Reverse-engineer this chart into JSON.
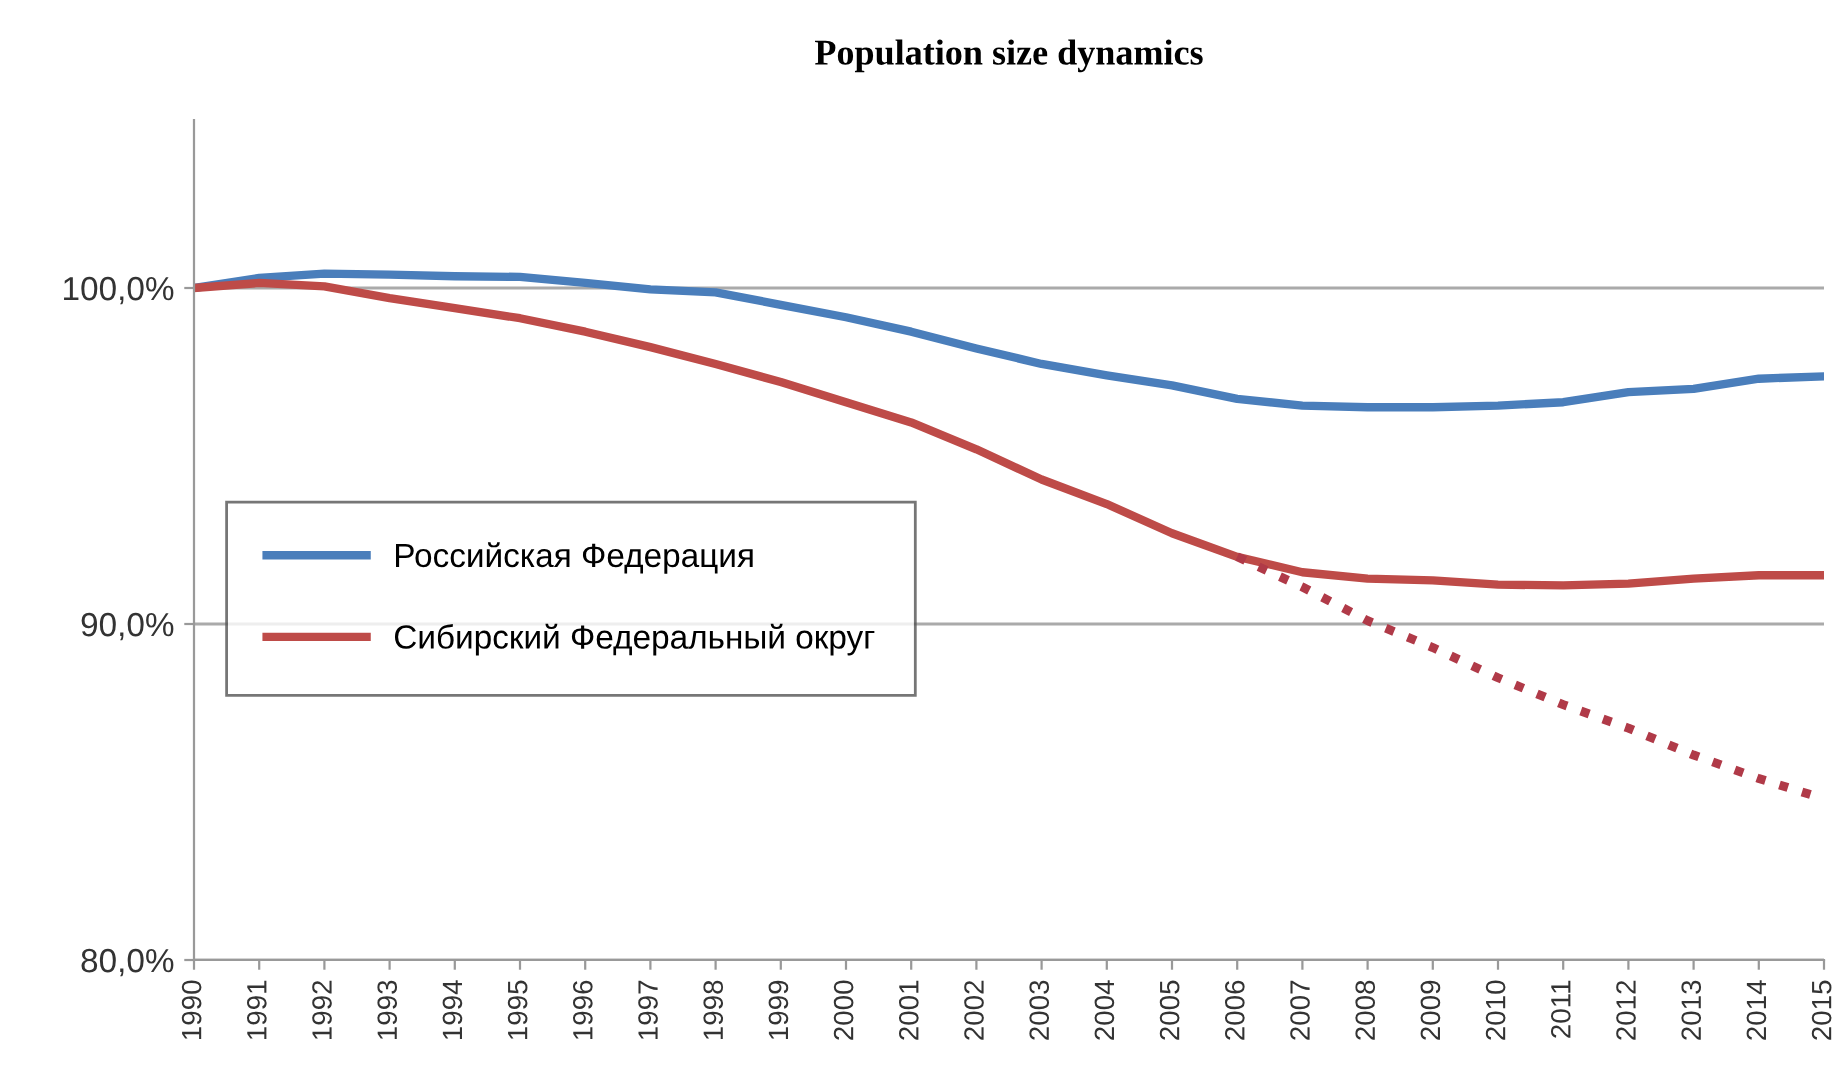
{
  "chart_data": {
    "type": "line",
    "title": "Population size dynamics",
    "categories": [
      "1990",
      "1991",
      "1992",
      "1993",
      "1994",
      "1995",
      "1996",
      "1997",
      "1998",
      "1999",
      "2000",
      "2001",
      "2002",
      "2003",
      "2004",
      "2005",
      "2006",
      "2007",
      "2008",
      "2009",
      "2010",
      "2011",
      "2012",
      "2013",
      "2014",
      "2015"
    ],
    "series": [
      {
        "name": "Российская Федерация",
        "color": "#4a7ebb",
        "line_style": "solid",
        "values": [
          100,
          100.3,
          100.43,
          100.4,
          100.35,
          100.33,
          100.15,
          99.96,
          99.87,
          99.5,
          99.13,
          98.7,
          98.2,
          97.74,
          97.4,
          97.1,
          96.7,
          96.5,
          96.45,
          96.45,
          96.5,
          96.6,
          96.9,
          97.0,
          97.3,
          97.37
        ]
      },
      {
        "name": "Сибирский Федеральный округ",
        "color": "#be4b48",
        "line_style": "solid",
        "values": [
          100,
          100.15,
          100.05,
          99.7,
          99.4,
          99.1,
          98.7,
          98.24,
          97.74,
          97.2,
          96.6,
          96.0,
          95.2,
          94.3,
          93.57,
          92.7,
          92.0,
          91.54,
          91.35,
          91.3,
          91.17,
          91.15,
          91.2,
          91.35,
          91.45,
          91.45
        ]
      },
      {
        "color": "#b03a48",
        "line_style": "dotted",
        "values": [
          null,
          null,
          null,
          null,
          null,
          null,
          null,
          null,
          null,
          null,
          null,
          null,
          null,
          null,
          null,
          null,
          92.0,
          91.1,
          90.1,
          89.3,
          88.4,
          87.6,
          86.9,
          86.1,
          85.4,
          84.8
        ]
      }
    ],
    "ylim": [
      80,
      105
    ],
    "yticks": [
      {
        "value": 80,
        "label": "80,0%"
      },
      {
        "value": 90,
        "label": "90,0%"
      },
      {
        "value": 100,
        "label": "100,0%"
      }
    ],
    "grid": "y",
    "legend": "left",
    "marker": "none"
  }
}
